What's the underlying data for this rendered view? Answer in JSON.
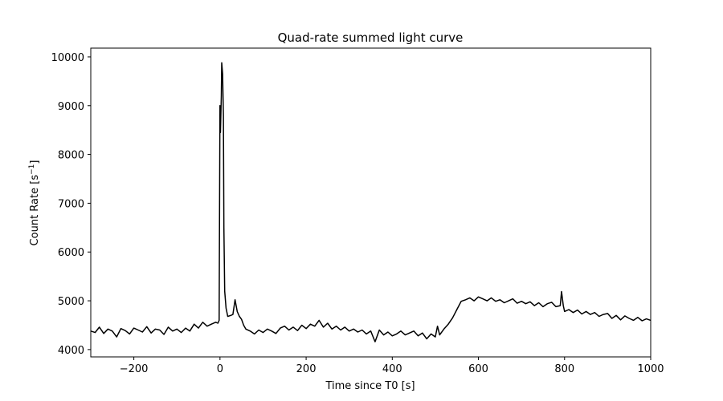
{
  "chart_data": {
    "type": "line",
    "title": "Quad-rate summed light curve",
    "xlabel": "Time since T0 [s]",
    "ylabel": "Count Rate [s",
    "ylabel_sup": "−1",
    "ylabel_close": "]",
    "xlim": [
      -300,
      1000
    ],
    "ylim": [
      3850,
      10180
    ],
    "xticks": [
      -200,
      0,
      200,
      400,
      600,
      800,
      1000
    ],
    "xtick_labels": [
      "−200",
      "0",
      "200",
      "400",
      "600",
      "800",
      "1000"
    ],
    "yticks": [
      4000,
      5000,
      6000,
      7000,
      8000,
      9000,
      10000
    ],
    "ytick_labels": [
      "4000",
      "5000",
      "6000",
      "7000",
      "8000",
      "9000",
      "10000"
    ],
    "grid": false,
    "series": [
      {
        "color": "#000000",
        "points": [
          [
            -300,
            4380
          ],
          [
            -290,
            4350
          ],
          [
            -280,
            4460
          ],
          [
            -270,
            4330
          ],
          [
            -260,
            4420
          ],
          [
            -250,
            4380
          ],
          [
            -240,
            4260
          ],
          [
            -230,
            4430
          ],
          [
            -220,
            4390
          ],
          [
            -210,
            4320
          ],
          [
            -200,
            4440
          ],
          [
            -190,
            4400
          ],
          [
            -180,
            4360
          ],
          [
            -170,
            4470
          ],
          [
            -160,
            4340
          ],
          [
            -150,
            4420
          ],
          [
            -140,
            4400
          ],
          [
            -130,
            4310
          ],
          [
            -120,
            4460
          ],
          [
            -110,
            4380
          ],
          [
            -100,
            4420
          ],
          [
            -90,
            4350
          ],
          [
            -80,
            4440
          ],
          [
            -70,
            4380
          ],
          [
            -60,
            4520
          ],
          [
            -50,
            4440
          ],
          [
            -40,
            4560
          ],
          [
            -30,
            4480
          ],
          [
            -20,
            4520
          ],
          [
            -10,
            4560
          ],
          [
            -5,
            4540
          ],
          [
            -2,
            4600
          ],
          [
            0,
            9000
          ],
          [
            1,
            8450
          ],
          [
            3,
            9200
          ],
          [
            4,
            9880
          ],
          [
            6,
            9650
          ],
          [
            8,
            8800
          ],
          [
            9,
            6500
          ],
          [
            11,
            5200
          ],
          [
            14,
            4850
          ],
          [
            18,
            4680
          ],
          [
            25,
            4700
          ],
          [
            30,
            4720
          ],
          [
            35,
            5020
          ],
          [
            40,
            4780
          ],
          [
            45,
            4680
          ],
          [
            50,
            4620
          ],
          [
            55,
            4500
          ],
          [
            60,
            4420
          ],
          [
            70,
            4380
          ],
          [
            80,
            4320
          ],
          [
            90,
            4400
          ],
          [
            100,
            4350
          ],
          [
            110,
            4420
          ],
          [
            120,
            4380
          ],
          [
            130,
            4330
          ],
          [
            140,
            4440
          ],
          [
            150,
            4480
          ],
          [
            160,
            4400
          ],
          [
            170,
            4460
          ],
          [
            180,
            4390
          ],
          [
            190,
            4500
          ],
          [
            200,
            4430
          ],
          [
            210,
            4520
          ],
          [
            220,
            4480
          ],
          [
            230,
            4600
          ],
          [
            240,
            4460
          ],
          [
            250,
            4540
          ],
          [
            260,
            4420
          ],
          [
            270,
            4480
          ],
          [
            280,
            4400
          ],
          [
            290,
            4460
          ],
          [
            300,
            4380
          ],
          [
            310,
            4420
          ],
          [
            320,
            4360
          ],
          [
            330,
            4400
          ],
          [
            340,
            4320
          ],
          [
            350,
            4380
          ],
          [
            360,
            4160
          ],
          [
            370,
            4400
          ],
          [
            380,
            4300
          ],
          [
            390,
            4360
          ],
          [
            400,
            4280
          ],
          [
            410,
            4320
          ],
          [
            420,
            4380
          ],
          [
            430,
            4300
          ],
          [
            440,
            4340
          ],
          [
            450,
            4380
          ],
          [
            460,
            4280
          ],
          [
            470,
            4340
          ],
          [
            480,
            4220
          ],
          [
            490,
            4320
          ],
          [
            500,
            4260
          ],
          [
            505,
            4480
          ],
          [
            510,
            4300
          ],
          [
            520,
            4420
          ],
          [
            530,
            4520
          ],
          [
            540,
            4650
          ],
          [
            550,
            4820
          ],
          [
            560,
            4990
          ],
          [
            570,
            5020
          ],
          [
            580,
            5060
          ],
          [
            590,
            5000
          ],
          [
            600,
            5080
          ],
          [
            610,
            5040
          ],
          [
            620,
            5000
          ],
          [
            630,
            5060
          ],
          [
            640,
            4990
          ],
          [
            650,
            5020
          ],
          [
            660,
            4960
          ],
          [
            670,
            5000
          ],
          [
            680,
            5040
          ],
          [
            690,
            4950
          ],
          [
            700,
            4990
          ],
          [
            710,
            4940
          ],
          [
            720,
            4980
          ],
          [
            730,
            4900
          ],
          [
            740,
            4960
          ],
          [
            750,
            4880
          ],
          [
            760,
            4940
          ],
          [
            770,
            4970
          ],
          [
            780,
            4880
          ],
          [
            790,
            4900
          ],
          [
            793,
            5190
          ],
          [
            797,
            4900
          ],
          [
            800,
            4780
          ],
          [
            810,
            4820
          ],
          [
            820,
            4760
          ],
          [
            830,
            4810
          ],
          [
            840,
            4730
          ],
          [
            850,
            4780
          ],
          [
            860,
            4720
          ],
          [
            870,
            4760
          ],
          [
            880,
            4680
          ],
          [
            890,
            4720
          ],
          [
            900,
            4740
          ],
          [
            910,
            4640
          ],
          [
            920,
            4700
          ],
          [
            930,
            4610
          ],
          [
            940,
            4690
          ],
          [
            950,
            4640
          ],
          [
            960,
            4600
          ],
          [
            970,
            4660
          ],
          [
            980,
            4590
          ],
          [
            990,
            4630
          ],
          [
            1000,
            4600
          ]
        ]
      }
    ]
  }
}
